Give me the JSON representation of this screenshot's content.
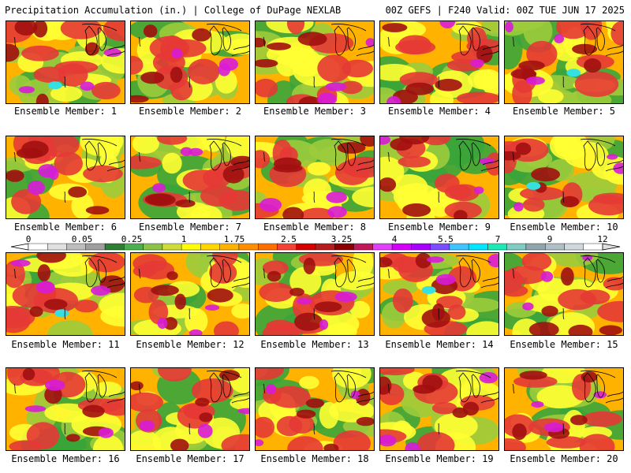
{
  "header": {
    "left": "Precipitation Accumulation (in.) | College of DuPage NEXLAB",
    "right": "00Z GEFS | F240 Valid: 00Z TUE JUN 17 2025"
  },
  "panels": [
    {
      "label": "Ensemble Member: 1"
    },
    {
      "label": "Ensemble Member: 2"
    },
    {
      "label": "Ensemble Member: 3"
    },
    {
      "label": "Ensemble Member: 4"
    },
    {
      "label": "Ensemble Member: 5"
    },
    {
      "label": "Ensemble Member: 6"
    },
    {
      "label": "Ensemble Member: 7"
    },
    {
      "label": "Ensemble Member: 8"
    },
    {
      "label": "Ensemble Member: 9"
    },
    {
      "label": "Ensemble Member: 10"
    },
    {
      "label": "Ensemble Member: 11"
    },
    {
      "label": "Ensemble Member: 12"
    },
    {
      "label": "Ensemble Member: 13"
    },
    {
      "label": "Ensemble Member: 14"
    },
    {
      "label": "Ensemble Member: 15"
    },
    {
      "label": "Ensemble Member: 16"
    },
    {
      "label": "Ensemble Member: 17"
    },
    {
      "label": "Ensemble Member: 18"
    },
    {
      "label": "Ensemble Member: 19"
    },
    {
      "label": "Ensemble Member: 20"
    }
  ],
  "legend": {
    "ticks": [
      "0",
      "0.05",
      "0.25",
      "1",
      "1.75",
      "2.5",
      "3.25",
      "4",
      "5.5",
      "7",
      "9",
      "12"
    ],
    "colors": [
      "#ffffff",
      "#e0e0e0",
      "#bdbdbd",
      "#9e9e9e",
      "#2e7d32",
      "#4caf50",
      "#8bc34a",
      "#cddc39",
      "#ffff00",
      "#ffd600",
      "#ffb300",
      "#ff8f00",
      "#ff6f00",
      "#f44336",
      "#d50000",
      "#b71c1c",
      "#8b0000",
      "#c2185b",
      "#e040fb",
      "#d500f9",
      "#aa00ff",
      "#7c4dff",
      "#40c4ff",
      "#00e5ff",
      "#1de9b6",
      "#80cbc4",
      "#90a4ae",
      "#b0bec5",
      "#cfd8dc",
      "#ffffff"
    ]
  },
  "colors": {
    "green": "#3aa53a",
    "ltgreen": "#9ccc3c",
    "yellow": "#ffff33",
    "orange": "#ffb300",
    "red": "#e53935",
    "dkred": "#a10f0f",
    "magenta": "#d81bd8",
    "cyan": "#35e0e0"
  }
}
